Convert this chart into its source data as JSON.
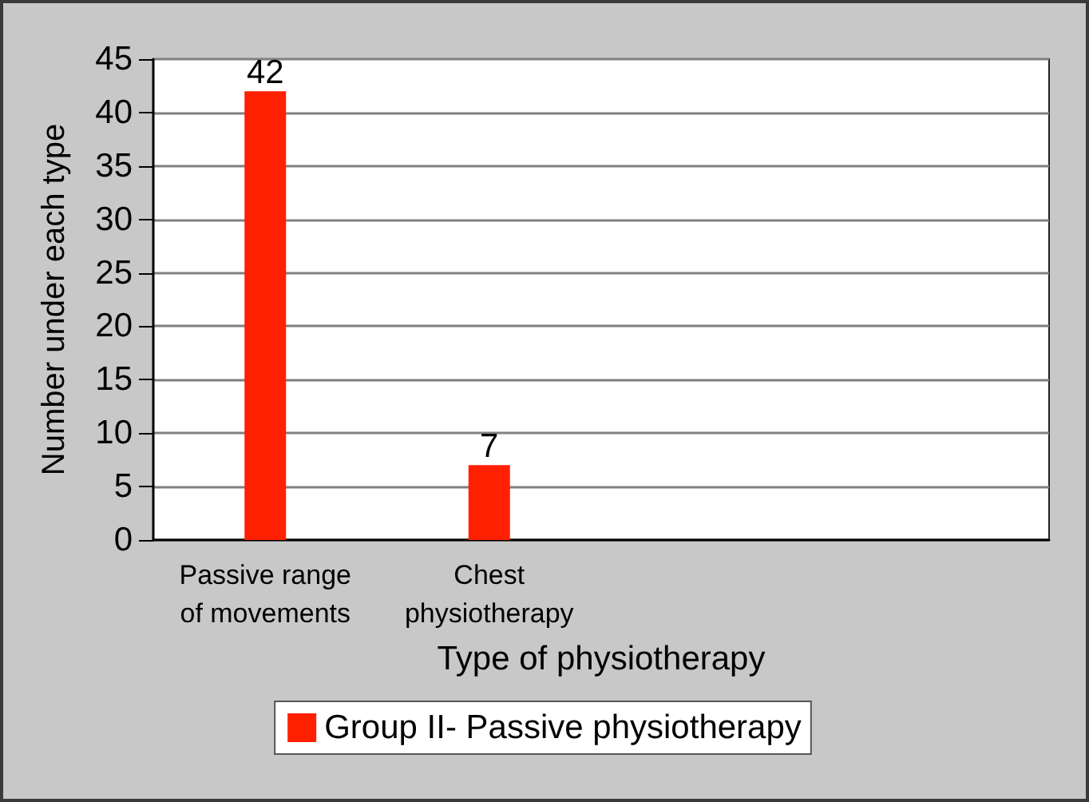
{
  "chart_data": {
    "type": "bar",
    "xlabel": "Type of physiotherapy",
    "ylabel": "Number under each type",
    "categories": [
      "Passive range\nof movements",
      "Chest\nphysiotherapy",
      null,
      null
    ],
    "series": [
      {
        "name": "Group II- Passive physiotherapy",
        "color": "#ff2000",
        "values": [
          42,
          7,
          null,
          null
        ]
      }
    ],
    "ylim": [
      0,
      45
    ],
    "yticks": [
      0,
      5,
      10,
      15,
      20,
      25,
      30,
      35,
      40,
      45
    ],
    "grid": "y",
    "legend": "bottom",
    "data_labels": true
  }
}
